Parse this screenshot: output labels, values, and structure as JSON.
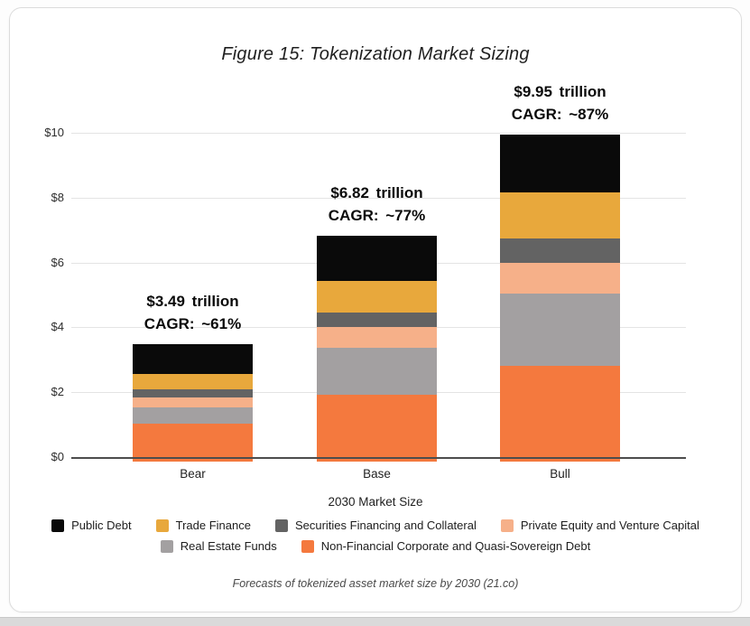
{
  "figure": {
    "title": "Figure 15: Tokenization Market Sizing",
    "caption": "Forecasts of tokenized asset market size by 2030 (21.co)",
    "x_axis_title": "2030 Market Size"
  },
  "colors": {
    "axis_line": "#4d4d4d",
    "gridline": "#e4e4e4",
    "annotation_text": "#0a0a0a"
  },
  "chart_data": {
    "type": "bar",
    "subtype": "stacked",
    "title": "Figure 15: Tokenization Market Sizing",
    "xlabel": "2030 Market Size",
    "ylabel": "",
    "ylim": [
      0,
      10
    ],
    "grid": true,
    "categories": [
      "Bear",
      "Base",
      "Bull"
    ],
    "y_ticks": [
      {
        "label": "$0",
        "value": 0
      },
      {
        "label": "$2",
        "value": 2
      },
      {
        "label": "$4",
        "value": 4
      },
      {
        "label": "$6",
        "value": 6
      },
      {
        "label": "$8",
        "value": 8
      },
      {
        "label": "$10",
        "value": 10
      }
    ],
    "series": [
      {
        "key": "non_financial",
        "name": "Non-Financial Corporate and Quasi-Sovereign Debt",
        "color": "#f4793e",
        "values": [
          1.02,
          1.93,
          2.82
        ]
      },
      {
        "key": "real_estate",
        "name": "Real Estate Funds",
        "color": "#a3a0a1",
        "values": [
          0.5,
          1.45,
          2.22
        ]
      },
      {
        "key": "pe_vc",
        "name": "Private Equity and Venture Capital",
        "color": "#f6b089",
        "values": [
          0.33,
          0.64,
          0.95
        ]
      },
      {
        "key": "securities",
        "name": "Securities Financing and Collateral",
        "color": "#636363",
        "values": [
          0.25,
          0.45,
          0.76
        ]
      },
      {
        "key": "trade_finance",
        "name": "Trade Finance",
        "color": "#e8a83c",
        "values": [
          0.47,
          0.95,
          1.4
        ]
      },
      {
        "key": "public_debt",
        "name": "Public Debt",
        "color": "#0a0a0a",
        "values": [
          0.92,
          1.4,
          1.8
        ]
      }
    ],
    "totals": [
      "$3.49 trillion",
      "$6.82 trillion",
      "$9.95 trillion"
    ],
    "cagr": [
      "CAGR: ~61%",
      "CAGR: ~77%",
      "CAGR: ~87%"
    ],
    "legend_rows": [
      [
        "public_debt",
        "trade_finance",
        "securities",
        "pe_vc"
      ],
      [
        "real_estate",
        "non_financial"
      ]
    ],
    "legend_position": "bottom"
  }
}
